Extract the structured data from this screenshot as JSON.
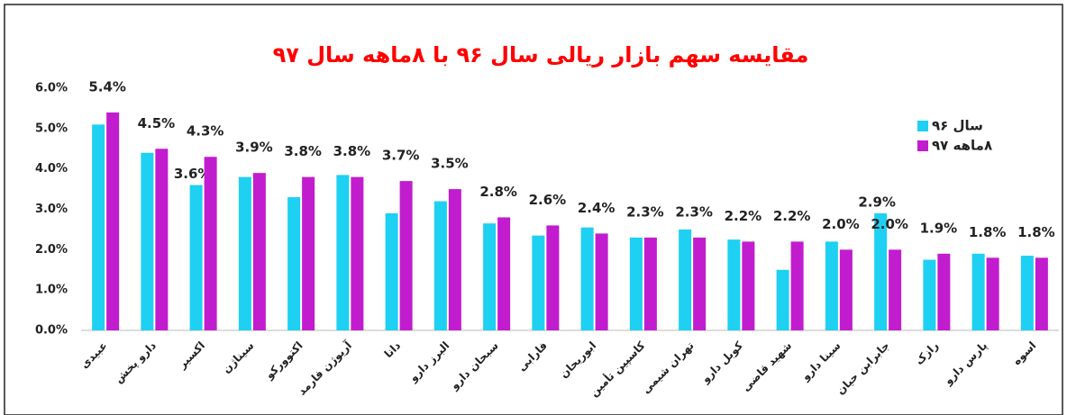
{
  "chart_data": {
    "type": "bar",
    "title": "مقایسه سهم بازار ریالی سال ۹۶ با ۸ماهه سال ۹۷",
    "title_color": "#ff0000",
    "categories": [
      "عبیدی",
      "دارو پخش",
      "اکسیر",
      "سیناژن",
      "اکتوورکو",
      "آریوژن فارمد",
      "دانا",
      "البرز دارو",
      "سبحان دارو",
      "فارابی",
      "ابوریحان",
      "کاسپین تأمین",
      "تهران شیمی",
      "کوبل دارو",
      "شهید قاضی",
      "سینا دارو",
      "جابرابن حیان",
      "رازک",
      "پارس دارو",
      "اسوه"
    ],
    "series": [
      {
        "name": "سال ۹۶",
        "color": "#1ed0f2",
        "values": [
          5.1,
          4.4,
          3.6,
          3.8,
          3.3,
          3.85,
          2.9,
          3.2,
          2.65,
          2.35,
          2.55,
          2.3,
          2.5,
          2.25,
          1.5,
          2.2,
          2.9,
          1.75,
          1.9,
          1.85
        ],
        "value_labels": [
          null,
          null,
          "3.6%",
          null,
          null,
          null,
          null,
          null,
          null,
          null,
          null,
          null,
          null,
          null,
          null,
          null,
          "2.9%",
          null,
          null,
          null
        ]
      },
      {
        "name": "۸ماهه ۹۷",
        "color": "#c21ccf",
        "values": [
          5.4,
          4.5,
          4.3,
          3.9,
          3.8,
          3.8,
          3.7,
          3.5,
          2.8,
          2.6,
          2.4,
          2.3,
          2.3,
          2.2,
          2.2,
          2.0,
          2.0,
          1.9,
          1.8,
          1.8
        ],
        "value_labels": [
          "5.4%",
          "4.5%",
          "4.3%",
          "3.9%",
          "3.8%",
          "3.8%",
          "3.7%",
          "3.5%",
          "2.8%",
          "2.6%",
          "2.4%",
          "2.3%",
          "2.3%",
          "2.2%",
          "2.2%",
          "2.0%",
          "2.0%",
          "1.9%",
          "1.8%",
          "1.8%"
        ]
      }
    ],
    "ylim": [
      0,
      6
    ],
    "yticks": [
      {
        "value": 0,
        "label": "0.0%"
      },
      {
        "value": 1,
        "label": "1.0%"
      },
      {
        "value": 2,
        "label": "2.0%"
      },
      {
        "value": 3,
        "label": "3.0%"
      },
      {
        "value": 4,
        "label": "4.0%"
      },
      {
        "value": 5,
        "label": "5.0%"
      },
      {
        "value": 6,
        "label": "6.0%"
      }
    ],
    "grid": false,
    "legend": "top-right"
  }
}
